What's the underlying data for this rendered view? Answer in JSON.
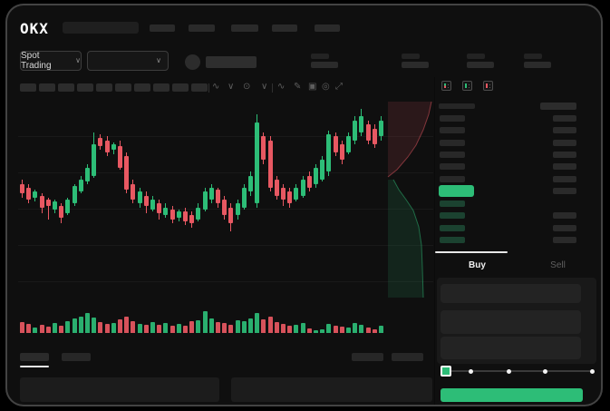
{
  "colors": {
    "green": "#2dbd77",
    "red": "#e85862",
    "bid-bar": "#1b4230",
    "placeholder": "#2a2a2a",
    "placeholder-dark": "#232323",
    "table-bg": "#1c1c1c",
    "depth-ask-fill": "rgba(232,88,98,0.13)",
    "depth-ask-line": "rgba(232,88,98,0.5)",
    "depth-bid-fill": "rgba(45,189,119,0.13)",
    "depth-bid-line": "rgba(45,189,119,0.5)"
  },
  "header": {
    "logo": "OKX",
    "nav_item_count": 5
  },
  "subheader": {
    "market_selector": {
      "label": "Spot Trading",
      "chevron": "∨"
    },
    "pair_selector": {
      "chevron": "∨"
    },
    "ticker_stat_count": 4
  },
  "chart_toolbar": {
    "timeframe_pill_count": 10,
    "icons": [
      {
        "name": "indicators-icon",
        "glyph": "∿"
      },
      {
        "name": "chevron-down-icon",
        "glyph": "∨"
      },
      {
        "name": "interval-icon",
        "glyph": "⊙"
      },
      {
        "name": "chevron-down-icon",
        "glyph": "∨"
      },
      {
        "name": "line-tools-icon",
        "glyph": "∿"
      },
      {
        "name": "draw-icon",
        "glyph": "✎"
      },
      {
        "name": "snapshot-icon",
        "glyph": "▣"
      },
      {
        "name": "settings-icon",
        "glyph": "◎"
      },
      {
        "name": "fullscreen-icon",
        "glyph": "⤢"
      }
    ]
  },
  "chart_data": {
    "type": "candlestick",
    "title": "",
    "xlabel": "",
    "ylabel": "",
    "units": "percent of pane height from top (price axis labels not visible in UI)",
    "candle_format": [
      "high",
      "body_top",
      "body_bottom",
      "low",
      "bullish(1)/bearish(0)"
    ],
    "candles": [
      [
        40,
        42,
        47,
        49,
        0
      ],
      [
        42,
        44,
        50,
        52,
        0
      ],
      [
        45,
        46,
        49,
        51,
        1
      ],
      [
        47,
        48,
        54,
        57,
        0
      ],
      [
        49,
        50,
        53,
        60,
        0
      ],
      [
        50,
        51,
        55,
        57,
        1
      ],
      [
        52,
        53,
        59,
        62,
        0
      ],
      [
        49,
        50,
        57,
        58,
        1
      ],
      [
        42,
        43,
        52,
        53,
        1
      ],
      [
        38,
        40,
        46,
        47,
        1
      ],
      [
        32,
        34,
        41,
        42,
        1
      ],
      [
        16,
        22,
        38,
        39,
        1
      ],
      [
        17,
        19,
        23,
        25,
        0
      ],
      [
        18,
        20,
        26,
        28,
        0
      ],
      [
        21,
        22,
        25,
        27,
        1
      ],
      [
        20,
        23,
        34,
        35,
        0
      ],
      [
        26,
        28,
        45,
        47,
        0
      ],
      [
        40,
        42,
        50,
        52,
        0
      ],
      [
        44,
        46,
        52,
        54,
        1
      ],
      [
        46,
        48,
        53,
        57,
        0
      ],
      [
        48,
        50,
        55,
        56,
        1
      ],
      [
        50,
        52,
        57,
        60,
        0
      ],
      [
        52,
        54,
        58,
        59,
        1
      ],
      [
        53,
        55,
        60,
        62,
        0
      ],
      [
        55,
        56,
        59,
        61,
        1
      ],
      [
        54,
        56,
        61,
        63,
        0
      ],
      [
        56,
        58,
        62,
        64,
        0
      ],
      [
        52,
        54,
        60,
        61,
        1
      ],
      [
        44,
        46,
        55,
        56,
        1
      ],
      [
        42,
        44,
        50,
        52,
        1
      ],
      [
        44,
        45,
        52,
        54,
        0
      ],
      [
        48,
        50,
        58,
        60,
        0
      ],
      [
        52,
        54,
        62,
        66,
        0
      ],
      [
        50,
        52,
        58,
        60,
        1
      ],
      [
        42,
        44,
        54,
        55,
        1
      ],
      [
        36,
        38,
        46,
        48,
        1
      ],
      [
        7,
        11,
        52,
        54,
        1
      ],
      [
        16,
        18,
        30,
        32,
        0
      ],
      [
        18,
        20,
        44,
        46,
        0
      ],
      [
        38,
        40,
        48,
        50,
        0
      ],
      [
        42,
        44,
        50,
        53,
        0
      ],
      [
        44,
        46,
        52,
        54,
        0
      ],
      [
        42,
        44,
        50,
        51,
        1
      ],
      [
        38,
        40,
        48,
        49,
        1
      ],
      [
        36,
        38,
        44,
        46,
        0
      ],
      [
        32,
        34,
        42,
        44,
        1
      ],
      [
        28,
        30,
        40,
        41,
        1
      ],
      [
        15,
        17,
        36,
        38,
        1
      ],
      [
        16,
        18,
        26,
        28,
        0
      ],
      [
        20,
        22,
        30,
        32,
        0
      ],
      [
        16,
        18,
        26,
        27,
        1
      ],
      [
        8,
        10,
        20,
        22,
        1
      ],
      [
        4,
        8,
        16,
        18,
        1
      ],
      [
        10,
        12,
        20,
        22,
        0
      ],
      [
        12,
        14,
        22,
        24,
        0
      ],
      [
        8,
        10,
        18,
        20,
        1
      ]
    ],
    "volume": [
      12,
      10,
      6,
      9,
      7,
      11,
      8,
      13,
      16,
      18,
      22,
      17,
      12,
      10,
      11,
      15,
      18,
      13,
      10,
      9,
      12,
      9,
      11,
      8,
      10,
      8,
      13,
      14,
      24,
      16,
      12,
      11,
      9,
      14,
      13,
      16,
      22,
      15,
      18,
      12,
      10,
      8,
      9,
      11,
      5,
      3,
      4,
      10,
      8,
      7,
      6,
      11,
      9,
      6,
      4,
      8
    ],
    "depth_overlay": {
      "ask_side": "top",
      "bid_side": "bottom"
    }
  },
  "orderbook": {
    "view_mode_icons": [
      "book-combined-icon",
      "book-bids-icon",
      "book-asks-icon"
    ],
    "ask_row_count": 6,
    "bid_row_count": 4,
    "last_price_highlighted": true
  },
  "trade_panel": {
    "tabs": {
      "buy": "Buy",
      "sell": "Sell"
    },
    "active_tab": "Buy",
    "field_count": 3,
    "slider": {
      "stop_positions_pct": [
        0,
        18.4,
        43.6,
        68.1,
        100
      ],
      "value_pct": 0
    }
  }
}
